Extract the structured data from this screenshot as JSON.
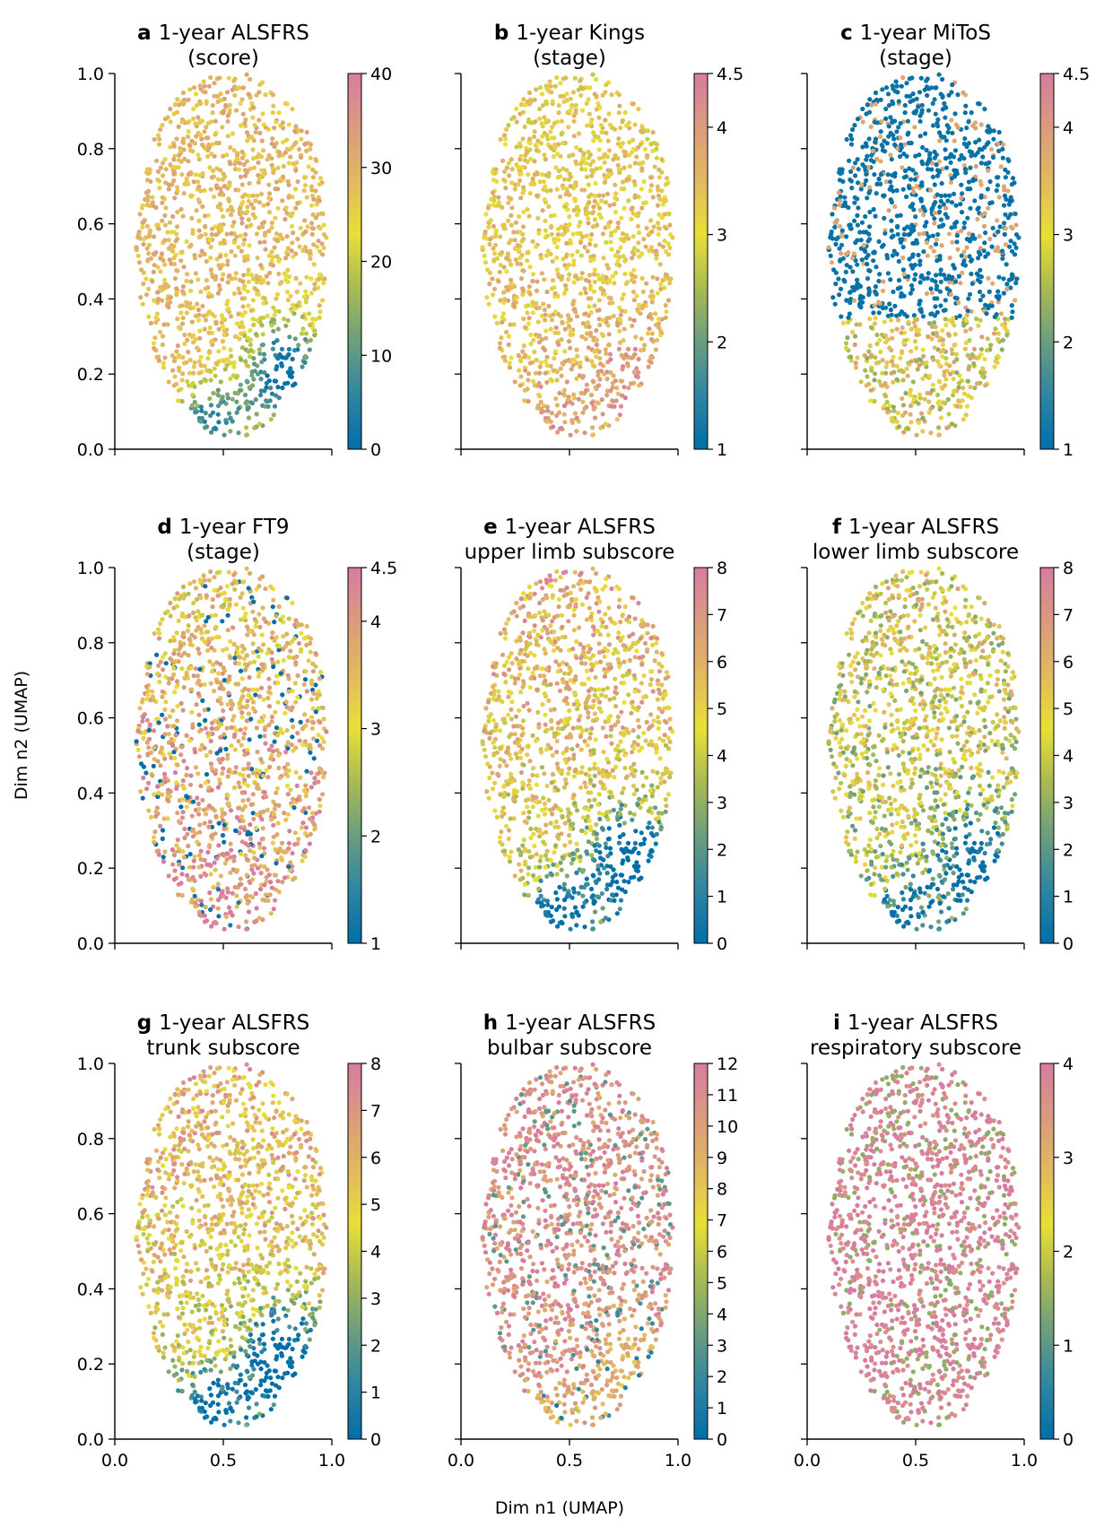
{
  "figure": {
    "xlabel": "Dim n1 (UMAP)",
    "ylabel": "Dim n2 (UMAP)",
    "colormap": [
      "#006fa8",
      "#2f85a1",
      "#6a9e7f",
      "#a9ba53",
      "#e9df36",
      "#e2b960",
      "#da9b7e",
      "#d77ca0"
    ]
  },
  "chart_data": [
    {
      "type": "scatter",
      "panel": "a",
      "title_line1": "1-year ALSFRS",
      "title_line2": "(score)",
      "xlim": [
        0,
        1
      ],
      "ylim": [
        0,
        1
      ],
      "x_ticks": [
        "0.0",
        "0.5",
        "1.0"
      ],
      "y_ticks": [
        "0.0",
        "0.2",
        "0.4",
        "0.6",
        "0.8",
        "1.0"
      ],
      "colorbar": {
        "min": 0,
        "max": 40,
        "ticks": [
          "0",
          "10",
          "20",
          "30",
          "40"
        ]
      }
    },
    {
      "type": "scatter",
      "panel": "b",
      "title_line1": "1-year Kings",
      "title_line2": "(stage)",
      "xlim": [
        0,
        1
      ],
      "ylim": [
        0,
        1
      ],
      "x_ticks": [
        "0.0",
        "0.5",
        "1.0"
      ],
      "y_ticks": [
        "0.0",
        "0.2",
        "0.4",
        "0.6",
        "0.8",
        "1.0"
      ],
      "colorbar": {
        "min": 1,
        "max": 4.5,
        "ticks": [
          "1",
          "2",
          "3",
          "4",
          "4.5"
        ]
      }
    },
    {
      "type": "scatter",
      "panel": "c",
      "title_line1": "1-year MiToS",
      "title_line2": "(stage)",
      "xlim": [
        0,
        1
      ],
      "ylim": [
        0,
        1
      ],
      "x_ticks": [
        "0.0",
        "0.5",
        "1.0"
      ],
      "y_ticks": [
        "0.0",
        "0.2",
        "0.4",
        "0.6",
        "0.8",
        "1.0"
      ],
      "colorbar": {
        "min": 1,
        "max": 4.5,
        "ticks": [
          "1",
          "2",
          "3",
          "4",
          "4.5"
        ]
      }
    },
    {
      "type": "scatter",
      "panel": "d",
      "title_line1": "1-year FT9",
      "title_line2": "(stage)",
      "xlim": [
        0,
        1
      ],
      "ylim": [
        0,
        1
      ],
      "x_ticks": [
        "0.0",
        "0.5",
        "1.0"
      ],
      "y_ticks": [
        "0.0",
        "0.2",
        "0.4",
        "0.6",
        "0.8",
        "1.0"
      ],
      "colorbar": {
        "min": 1,
        "max": 4.5,
        "ticks": [
          "1",
          "2",
          "3",
          "4",
          "4.5"
        ]
      }
    },
    {
      "type": "scatter",
      "panel": "e",
      "title_line1": "1-year ALSFRS",
      "title_line2": "upper limb subscore",
      "xlim": [
        0,
        1
      ],
      "ylim": [
        0,
        1
      ],
      "x_ticks": [
        "0.0",
        "0.5",
        "1.0"
      ],
      "y_ticks": [
        "0.0",
        "0.2",
        "0.4",
        "0.6",
        "0.8",
        "1.0"
      ],
      "colorbar": {
        "min": 0,
        "max": 8,
        "ticks": [
          "0",
          "1",
          "2",
          "3",
          "4",
          "5",
          "6",
          "7",
          "8"
        ]
      }
    },
    {
      "type": "scatter",
      "panel": "f",
      "title_line1": "1-year ALSFRS",
      "title_line2": "lower limb subscore",
      "xlim": [
        0,
        1
      ],
      "ylim": [
        0,
        1
      ],
      "x_ticks": [
        "0.0",
        "0.5",
        "1.0"
      ],
      "y_ticks": [
        "0.0",
        "0.2",
        "0.4",
        "0.6",
        "0.8",
        "1.0"
      ],
      "colorbar": {
        "min": 0,
        "max": 8,
        "ticks": [
          "0",
          "1",
          "2",
          "3",
          "4",
          "5",
          "6",
          "7",
          "8"
        ]
      }
    },
    {
      "type": "scatter",
      "panel": "g",
      "title_line1": "1-year ALSFRS",
      "title_line2": "trunk subscore",
      "xlim": [
        0,
        1
      ],
      "ylim": [
        0,
        1
      ],
      "x_ticks": [
        "0.0",
        "0.5",
        "1.0"
      ],
      "y_ticks": [
        "0.0",
        "0.2",
        "0.4",
        "0.6",
        "0.8",
        "1.0"
      ],
      "colorbar": {
        "min": 0,
        "max": 8,
        "ticks": [
          "0",
          "1",
          "2",
          "3",
          "4",
          "5",
          "6",
          "7",
          "8"
        ]
      }
    },
    {
      "type": "scatter",
      "panel": "h",
      "title_line1": "1-year ALSFRS",
      "title_line2": "bulbar subscore",
      "xlim": [
        0,
        1
      ],
      "ylim": [
        0,
        1
      ],
      "x_ticks": [
        "0.0",
        "0.5",
        "1.0"
      ],
      "y_ticks": [
        "0.0",
        "0.2",
        "0.4",
        "0.6",
        "0.8",
        "1.0"
      ],
      "colorbar": {
        "min": 0,
        "max": 12,
        "ticks": [
          "0",
          "1",
          "2",
          "3",
          "4",
          "5",
          "6",
          "7",
          "8",
          "9",
          "10",
          "11",
          "12"
        ]
      }
    },
    {
      "type": "scatter",
      "panel": "i",
      "title_line1": "1-year ALSFRS",
      "title_line2": "respiratory subscore",
      "xlim": [
        0,
        1
      ],
      "ylim": [
        0,
        1
      ],
      "x_ticks": [
        "0.0",
        "0.5",
        "1.0"
      ],
      "y_ticks": [
        "0.0",
        "0.2",
        "0.4",
        "0.6",
        "0.8",
        "1.0"
      ],
      "colorbar": {
        "min": 0,
        "max": 4,
        "ticks": [
          "0",
          "1",
          "2",
          "3",
          "4"
        ]
      }
    }
  ]
}
